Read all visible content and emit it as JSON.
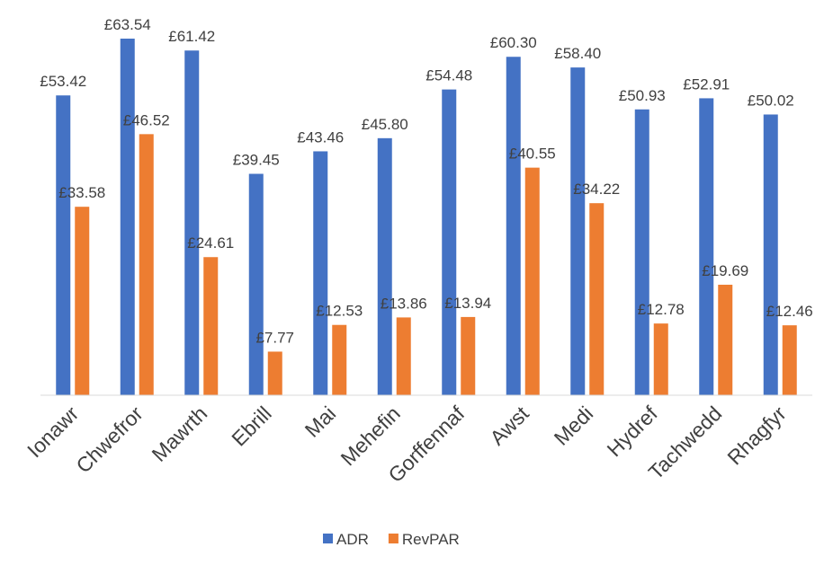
{
  "chart_data": {
    "type": "bar",
    "categories": [
      "Ionawr",
      "Chwefror",
      "Mawrth",
      "Ebrill",
      "Mai",
      "Mehefin",
      "Gorffennaf",
      "Awst",
      "Medi",
      "Hydref",
      "Tachwedd",
      "Rhagfyr"
    ],
    "series": [
      {
        "name": "ADR",
        "color": "#4472c4",
        "values": [
          53.42,
          63.54,
          61.42,
          39.45,
          43.46,
          45.8,
          54.48,
          60.3,
          58.4,
          50.93,
          52.91,
          50.02
        ],
        "value_labels": [
          "£53.42",
          "£63.54",
          "£61.42",
          "£39.45",
          "£43.46",
          "£45.80",
          "£54.48",
          "£60.30",
          "£58.40",
          "£50.93",
          "£52.91",
          "£50.02"
        ]
      },
      {
        "name": "RevPAR",
        "color": "#ed7d31",
        "values": [
          33.58,
          46.52,
          24.61,
          7.77,
          12.53,
          13.86,
          13.94,
          40.55,
          34.22,
          12.78,
          19.69,
          12.46
        ],
        "value_labels": [
          "£33.58",
          "£46.52",
          "£24.61",
          "£7.77",
          "£12.53",
          "£13.86",
          "£13.94",
          "£40.55",
          "£34.22",
          "£12.78",
          "£19.69",
          "£12.46"
        ]
      }
    ],
    "legend": "bottom"
  }
}
